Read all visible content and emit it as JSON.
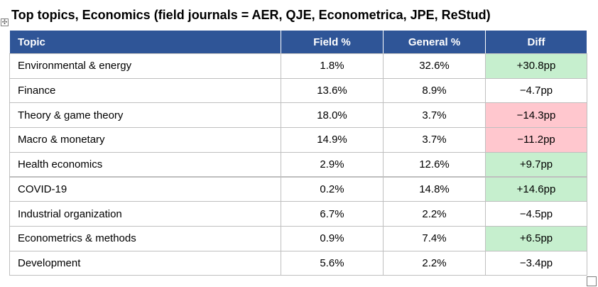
{
  "title": "Top topics, Economics (field journals = AER, QJE, Econometrica, JPE, ReStud)",
  "table": {
    "header": [
      "Topic",
      "Field %",
      "General %",
      "Diff"
    ],
    "rows": [
      [
        "Environmental & energy",
        "1.8%",
        "32.6%",
        "+30.8pp"
      ],
      [
        "Finance",
        "13.6%",
        "8.9%",
        "−4.7pp"
      ],
      [
        "Theory & game theory",
        "18.0%",
        "3.7%",
        "−14.3pp"
      ],
      [
        "Macro & monetary",
        "14.9%",
        "3.7%",
        "−11.2pp"
      ],
      [
        "Health economics",
        "2.9%",
        "12.6%",
        "+9.7pp"
      ],
      [
        "COVID-19",
        "0.2%",
        "14.8%",
        "+14.6pp"
      ],
      [
        "Industrial organization",
        "6.7%",
        "2.2%",
        "−4.5pp"
      ],
      [
        "Econometrics & methods",
        "0.9%",
        "7.4%",
        "+6.5pp"
      ],
      [
        "Development",
        "5.6%",
        "2.2%",
        "−3.4pp"
      ]
    ],
    "header_fill": "#2f5597",
    "diff_fills": [
      "#c6efce",
      null,
      "#ffc7ce",
      "#ffc7ce",
      "#c6efce",
      "#c6efce",
      null,
      "#c6efce",
      null
    ]
  }
}
